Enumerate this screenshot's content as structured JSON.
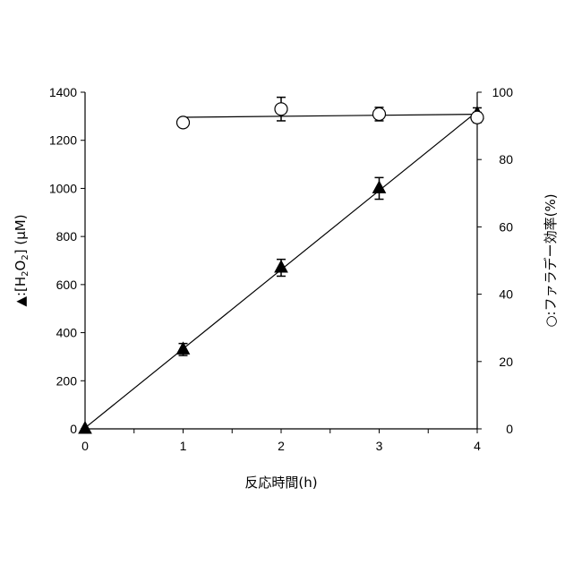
{
  "chart_data": {
    "type": "scatter",
    "xlabel": "反応時間(h)",
    "ylabel_left": {
      "symbol": "▲",
      "prefix": ":[H",
      "sub1": "2",
      "mid": "O",
      "sub2": "2",
      "suffix": "] (μM)"
    },
    "ylabel_right": "○:ファラデー効率(%)",
    "x_ticks": [
      "0",
      "1",
      "2",
      "3",
      "4"
    ],
    "y_left_ticks": [
      "0",
      "200",
      "400",
      "600",
      "800",
      "1000",
      "1200",
      "1400"
    ],
    "y_right_ticks": [
      "0",
      "20",
      "40",
      "60",
      "80",
      "100"
    ],
    "xlim": [
      0,
      4
    ],
    "ylim_left": [
      0,
      1400
    ],
    "ylim_right": [
      0,
      100
    ],
    "series": [
      {
        "axis": "left",
        "marker": "triangle-filled",
        "x": [
          0,
          1,
          2,
          3,
          4
        ],
        "y": [
          0,
          330,
          670,
          1000,
          1310
        ],
        "err": [
          0,
          25,
          35,
          45,
          25
        ]
      },
      {
        "axis": "right",
        "marker": "circle-open",
        "x": [
          1,
          2,
          3,
          4
        ],
        "y": [
          91,
          95,
          93.5,
          92.5
        ],
        "err": [
          0,
          3.5,
          2,
          1.5
        ]
      }
    ]
  }
}
